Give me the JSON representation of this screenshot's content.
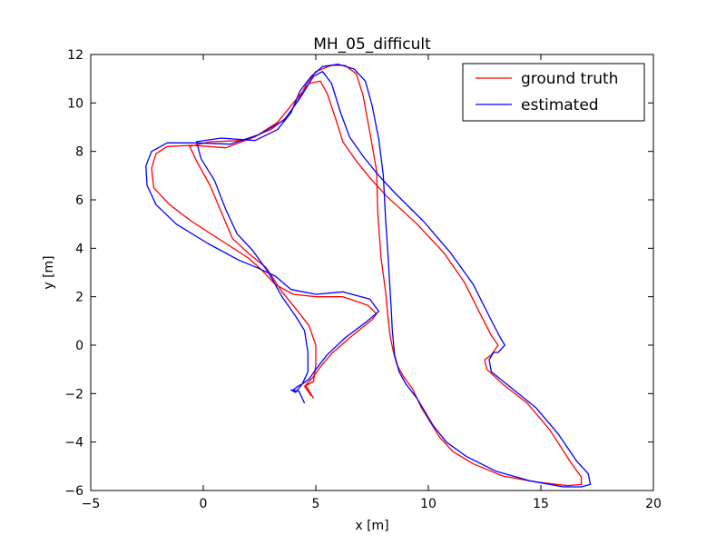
{
  "chart_data": {
    "type": "line",
    "title": "MH_05_difficult",
    "xlabel": "x [m]",
    "ylabel": "y [m]",
    "xlim": [
      -5,
      20
    ],
    "ylim": [
      -6,
      12
    ],
    "xticks": [
      -5,
      0,
      5,
      10,
      15,
      20
    ],
    "yticks": [
      -6,
      -4,
      -2,
      0,
      2,
      4,
      6,
      8,
      10,
      12
    ],
    "grid": false,
    "legend_position": "top-right",
    "series": [
      {
        "name": "ground truth",
        "color": "#ff0000",
        "points": [
          [
            4.9,
            -2.2
          ],
          [
            4.55,
            -1.65
          ],
          [
            4.85,
            -1.35
          ],
          [
            5.2,
            -0.9
          ],
          [
            5.7,
            -0.35
          ],
          [
            6.5,
            0.3
          ],
          [
            7.5,
            1.05
          ],
          [
            7.7,
            1.3
          ],
          [
            7.3,
            1.65
          ],
          [
            6.2,
            2.0
          ],
          [
            5.0,
            2.0
          ],
          [
            4.0,
            2.1
          ],
          [
            3.2,
            2.5
          ],
          [
            2.6,
            3.1
          ],
          [
            2.0,
            3.6
          ],
          [
            1.0,
            4.2
          ],
          [
            -0.5,
            5.1
          ],
          [
            -1.5,
            5.8
          ],
          [
            -2.2,
            6.5
          ],
          [
            -2.3,
            7.3
          ],
          [
            -2.1,
            7.9
          ],
          [
            -1.6,
            8.2
          ],
          [
            -0.5,
            8.25
          ],
          [
            1.0,
            8.15
          ],
          [
            2.3,
            8.6
          ],
          [
            3.3,
            9.2
          ],
          [
            4.0,
            10.0
          ],
          [
            4.7,
            10.8
          ],
          [
            5.2,
            10.9
          ],
          [
            5.5,
            10.4
          ],
          [
            5.9,
            9.3
          ],
          [
            6.2,
            8.4
          ],
          [
            6.8,
            7.6
          ],
          [
            7.5,
            6.8
          ],
          [
            8.2,
            6.1
          ],
          [
            9.5,
            5.0
          ],
          [
            10.7,
            3.8
          ],
          [
            11.6,
            2.6
          ],
          [
            12.3,
            1.3
          ],
          [
            12.8,
            0.4
          ],
          [
            13.1,
            0.0
          ],
          [
            12.8,
            -0.4
          ],
          [
            12.5,
            -0.6
          ],
          [
            12.6,
            -1.0
          ],
          [
            13.3,
            -1.6
          ],
          [
            14.4,
            -2.4
          ],
          [
            15.4,
            -3.5
          ],
          [
            16.3,
            -4.8
          ],
          [
            16.8,
            -5.45
          ],
          [
            16.8,
            -5.75
          ],
          [
            16.2,
            -5.8
          ],
          [
            14.8,
            -5.65
          ],
          [
            13.3,
            -5.4
          ],
          [
            12.0,
            -4.9
          ],
          [
            11.1,
            -4.4
          ],
          [
            10.5,
            -3.8
          ],
          [
            9.7,
            -2.6
          ],
          [
            9.3,
            -1.8
          ],
          [
            8.9,
            -1.3
          ],
          [
            8.6,
            -0.8
          ],
          [
            8.45,
            -0.3
          ],
          [
            8.3,
            0.4
          ],
          [
            8.2,
            1.2
          ],
          [
            8.1,
            2.2
          ],
          [
            7.9,
            3.6
          ],
          [
            7.75,
            5.5
          ],
          [
            7.7,
            7.2
          ],
          [
            7.4,
            8.8
          ],
          [
            7.1,
            10.3
          ],
          [
            6.8,
            11.2
          ],
          [
            6.3,
            11.55
          ],
          [
            5.7,
            11.55
          ],
          [
            5.0,
            11.3
          ],
          [
            4.6,
            10.8
          ],
          [
            4.2,
            10.1
          ],
          [
            3.7,
            9.4
          ],
          [
            3.0,
            8.9
          ],
          [
            1.8,
            8.45
          ],
          [
            0.3,
            8.4
          ],
          [
            -0.6,
            8.2
          ],
          [
            -0.3,
            7.6
          ],
          [
            0.3,
            6.6
          ],
          [
            0.8,
            5.5
          ],
          [
            1.3,
            4.4
          ],
          [
            2.0,
            3.8
          ],
          [
            2.8,
            3.2
          ],
          [
            3.5,
            2.2
          ],
          [
            4.2,
            1.4
          ],
          [
            4.7,
            0.8
          ],
          [
            5.0,
            0.0
          ],
          [
            5.0,
            -0.8
          ],
          [
            4.9,
            -1.5
          ],
          [
            4.5,
            -1.7
          ],
          [
            4.8,
            -2.1
          ]
        ]
      },
      {
        "name": "estimated",
        "color": "#0000ff",
        "points": [
          [
            4.5,
            -2.4
          ],
          [
            4.25,
            -1.9
          ],
          [
            3.9,
            -1.85
          ],
          [
            4.1,
            -1.95
          ],
          [
            4.4,
            -1.6
          ],
          [
            4.7,
            -1.4
          ],
          [
            5.0,
            -1.0
          ],
          [
            5.5,
            -0.4
          ],
          [
            6.3,
            0.3
          ],
          [
            7.3,
            1.0
          ],
          [
            7.8,
            1.4
          ],
          [
            7.4,
            1.9
          ],
          [
            6.2,
            2.2
          ],
          [
            5.0,
            2.1
          ],
          [
            3.9,
            2.3
          ],
          [
            3.2,
            2.85
          ],
          [
            2.4,
            3.2
          ],
          [
            1.6,
            3.5
          ],
          [
            0.2,
            4.2
          ],
          [
            -1.2,
            5.0
          ],
          [
            -2.1,
            5.8
          ],
          [
            -2.5,
            6.6
          ],
          [
            -2.55,
            7.4
          ],
          [
            -2.3,
            8.0
          ],
          [
            -1.6,
            8.35
          ],
          [
            -0.3,
            8.35
          ],
          [
            1.2,
            8.3
          ],
          [
            2.5,
            8.7
          ],
          [
            3.6,
            9.3
          ],
          [
            4.3,
            10.2
          ],
          [
            4.9,
            11.1
          ],
          [
            5.3,
            11.3
          ],
          [
            5.7,
            10.8
          ],
          [
            6.1,
            9.6
          ],
          [
            6.5,
            8.6
          ],
          [
            7.1,
            7.8
          ],
          [
            7.8,
            7.0
          ],
          [
            8.5,
            6.3
          ],
          [
            9.8,
            5.1
          ],
          [
            11.0,
            3.8
          ],
          [
            12.0,
            2.5
          ],
          [
            12.7,
            1.2
          ],
          [
            13.2,
            0.3
          ],
          [
            13.4,
            0.0
          ],
          [
            13.1,
            -0.3
          ],
          [
            12.9,
            -0.3
          ],
          [
            12.7,
            -0.6
          ],
          [
            12.8,
            -1.1
          ],
          [
            13.6,
            -1.7
          ],
          [
            14.8,
            -2.6
          ],
          [
            15.8,
            -3.7
          ],
          [
            16.6,
            -4.8
          ],
          [
            17.1,
            -5.3
          ],
          [
            17.2,
            -5.75
          ],
          [
            16.8,
            -5.85
          ],
          [
            16.0,
            -5.85
          ],
          [
            14.5,
            -5.6
          ],
          [
            13.0,
            -5.2
          ],
          [
            11.7,
            -4.6
          ],
          [
            10.8,
            -4.0
          ],
          [
            10.2,
            -3.3
          ],
          [
            9.5,
            -2.2
          ],
          [
            9.0,
            -1.6
          ],
          [
            8.7,
            -1.1
          ],
          [
            8.5,
            -0.4
          ],
          [
            8.4,
            0.6
          ],
          [
            8.35,
            1.5
          ],
          [
            8.3,
            2.3
          ],
          [
            8.2,
            3.8
          ],
          [
            8.1,
            5.2
          ],
          [
            8.0,
            7.0
          ],
          [
            7.8,
            8.5
          ],
          [
            7.5,
            9.9
          ],
          [
            7.2,
            10.9
          ],
          [
            6.7,
            11.4
          ],
          [
            6.0,
            11.6
          ],
          [
            5.3,
            11.5
          ],
          [
            4.8,
            11.1
          ],
          [
            4.3,
            10.5
          ],
          [
            3.9,
            9.6
          ],
          [
            3.3,
            8.9
          ],
          [
            2.3,
            8.45
          ],
          [
            0.8,
            8.55
          ],
          [
            -0.3,
            8.4
          ],
          [
            -0.1,
            7.7
          ],
          [
            0.5,
            6.8
          ],
          [
            1.0,
            5.6
          ],
          [
            1.5,
            4.6
          ],
          [
            2.2,
            3.9
          ],
          [
            2.9,
            3.0
          ],
          [
            3.5,
            2.0
          ],
          [
            4.1,
            1.2
          ],
          [
            4.5,
            0.6
          ],
          [
            4.65,
            -0.3
          ],
          [
            4.65,
            -1.1
          ],
          [
            4.4,
            -1.6
          ],
          [
            4.2,
            -1.7
          ],
          [
            4.0,
            -1.85
          ]
        ]
      }
    ]
  }
}
